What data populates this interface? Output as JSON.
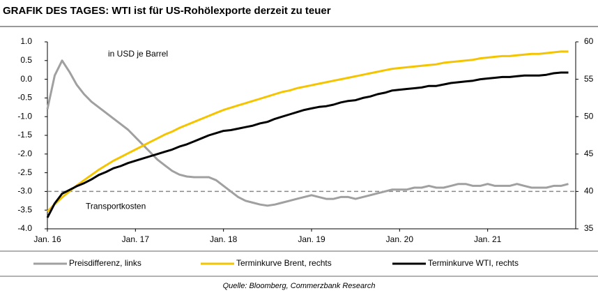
{
  "chart_data": {
    "type": "line",
    "title": "GRAFIK DES TAGES: WTI ist für US-Rohölexporte derzeit zu teuer",
    "annotation": "in USD je Barrel",
    "source": "Quelle: Bloomberg, Commerzbank Research",
    "reference_line": {
      "value": -3,
      "label": "Transportkosten"
    },
    "categories": [
      "Jan. 16",
      null,
      null,
      null,
      null,
      null,
      null,
      null,
      null,
      null,
      null,
      null,
      "Jan. 17",
      null,
      null,
      null,
      null,
      null,
      null,
      null,
      null,
      null,
      null,
      null,
      "Jan. 18",
      null,
      null,
      null,
      null,
      null,
      null,
      null,
      null,
      null,
      null,
      null,
      "Jan. 19",
      null,
      null,
      null,
      null,
      null,
      null,
      null,
      null,
      null,
      null,
      null,
      "Jan. 20",
      null,
      null,
      null,
      null,
      null,
      null,
      null,
      null,
      null,
      null,
      null,
      "Jan. 21",
      null,
      null,
      null,
      null,
      null,
      null,
      null,
      null,
      null,
      null,
      null
    ],
    "ylim": [
      -4,
      1
    ],
    "yticks": [
      {
        "value": 1,
        "label": "1.0"
      },
      0.5,
      {
        "value": 0,
        "label": "0.0"
      },
      -0.5,
      {
        "value": -1,
        "label": "-1.0"
      },
      -1.5,
      {
        "value": -2,
        "label": "-2.0"
      },
      -2.5,
      {
        "value": -3,
        "label": "-3.0"
      },
      -3.5,
      {
        "value": -4,
        "label": "-4.0"
      }
    ],
    "y2lim": [
      35,
      60
    ],
    "y2ticks": [
      35,
      40,
      45,
      50,
      55,
      60
    ],
    "series": [
      {
        "name": "Preisdifferenz, links",
        "color": "#a0a0a0",
        "axis": "y",
        "values": [
          -0.8,
          0.1,
          0.5,
          0.2,
          -0.15,
          -0.4,
          -0.6,
          -0.75,
          -0.9,
          -1.05,
          -1.2,
          -1.35,
          -1.55,
          -1.75,
          -1.95,
          -2.15,
          -2.3,
          -2.45,
          -2.55,
          -2.6,
          -2.62,
          -2.62,
          -2.62,
          -2.7,
          -2.85,
          -3.0,
          -3.15,
          -3.25,
          -3.3,
          -3.35,
          -3.38,
          -3.35,
          -3.3,
          -3.25,
          -3.2,
          -3.15,
          -3.1,
          -3.15,
          -3.2,
          -3.2,
          -3.15,
          -3.15,
          -3.2,
          -3.15,
          -3.1,
          -3.05,
          -3.0,
          -2.95,
          -2.95,
          -2.95,
          -2.9,
          -2.9,
          -2.85,
          -2.9,
          -2.9,
          -2.85,
          -2.8,
          -2.8,
          -2.85,
          -2.85,
          -2.8,
          -2.85,
          -2.85,
          -2.85,
          -2.8,
          -2.85,
          -2.9,
          -2.9,
          -2.9,
          -2.85,
          -2.85,
          -2.8
        ]
      },
      {
        "name": "Terminkurve Brent, rechts",
        "color": "#f5c400",
        "axis": "y2",
        "values": [
          37.3,
          38.3,
          39.2,
          40.0,
          40.8,
          41.5,
          42.2,
          42.9,
          43.5,
          44.1,
          44.6,
          45.1,
          45.6,
          46.1,
          46.6,
          47.1,
          47.6,
          48.0,
          48.5,
          48.9,
          49.3,
          49.7,
          50.1,
          50.5,
          50.9,
          51.2,
          51.5,
          51.8,
          52.1,
          52.4,
          52.7,
          53.0,
          53.3,
          53.5,
          53.8,
          54.0,
          54.2,
          54.4,
          54.6,
          54.8,
          55.0,
          55.2,
          55.4,
          55.6,
          55.8,
          56.0,
          56.2,
          56.4,
          56.5,
          56.6,
          56.7,
          56.8,
          56.9,
          57.0,
          57.2,
          57.3,
          57.4,
          57.5,
          57.6,
          57.8,
          57.9,
          58.0,
          58.1,
          58.1,
          58.2,
          58.3,
          58.4,
          58.4,
          58.5,
          58.6,
          58.7,
          58.7
        ]
      },
      {
        "name": "Terminkurve WTI, rechts",
        "color": "#000000",
        "axis": "y2",
        "values": [
          36.5,
          38.4,
          39.7,
          40.2,
          40.7,
          41.1,
          41.6,
          42.2,
          42.6,
          43.1,
          43.4,
          43.8,
          44.1,
          44.4,
          44.7,
          45.0,
          45.3,
          45.6,
          46.0,
          46.3,
          46.7,
          47.1,
          47.5,
          47.8,
          48.1,
          48.2,
          48.4,
          48.6,
          48.8,
          49.1,
          49.3,
          49.7,
          50.0,
          50.3,
          50.6,
          50.9,
          51.1,
          51.3,
          51.4,
          51.6,
          51.9,
          52.1,
          52.2,
          52.5,
          52.7,
          53.0,
          53.2,
          53.5,
          53.6,
          53.7,
          53.8,
          53.9,
          54.1,
          54.1,
          54.3,
          54.5,
          54.6,
          54.7,
          54.8,
          55.0,
          55.1,
          55.2,
          55.3,
          55.3,
          55.4,
          55.5,
          55.5,
          55.5,
          55.6,
          55.8,
          55.9,
          55.9
        ]
      }
    ]
  }
}
